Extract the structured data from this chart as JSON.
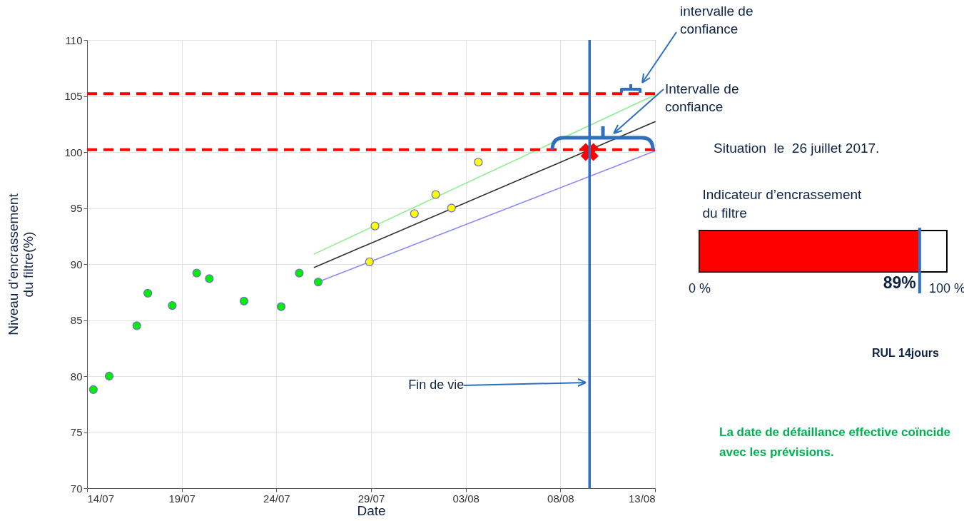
{
  "chart_data": [
    {
      "type": "scatter",
      "xlabel": "Date",
      "ylabel": "Niveau d’encrassement du filtre(%)",
      "xlim": [
        "2017-07-14",
        "2017-08-13"
      ],
      "xticks": [
        {
          "value": "2017-07-14",
          "label": "14/07"
        },
        {
          "value": "2017-07-19",
          "label": "19/07"
        },
        {
          "value": "2017-07-24",
          "label": "24/07"
        },
        {
          "value": "2017-07-29",
          "label": "29/07"
        },
        {
          "value": "2017-08-03",
          "label": "03/08"
        },
        {
          "value": "2017-08-08",
          "label": "08/08"
        },
        {
          "value": "2017-08-13",
          "label": "13/08"
        }
      ],
      "ylim": [
        70,
        110
      ],
      "yticks": [
        70,
        75,
        80,
        85,
        90,
        95,
        100,
        105,
        110
      ],
      "grid": true,
      "series": [
        {
          "type": "line",
          "color": "#90f090",
          "x": [
            "2017-07-26T00:00",
            "2017-08-13T00:00"
          ],
          "values": [
            90.9,
            105.1
          ]
        },
        {
          "type": "line",
          "color": "#303030",
          "x": [
            "2017-07-26T00:00",
            "2017-08-13T00:00"
          ],
          "values": [
            89.7,
            102.7
          ]
        },
        {
          "type": "line",
          "color": "#8c8cf5",
          "x": [
            "2017-07-26T05:00",
            "2017-08-13T00:00"
          ],
          "values": [
            88.4,
            100.1
          ]
        },
        {
          "type": "scatter",
          "color": "#00ee00",
          "marker": "circle",
          "x": [
            "2017-07-14T08:00",
            "2017-07-15T04:00",
            "2017-07-16T15:00",
            "2017-07-17T05:00",
            "2017-07-18T12:00",
            "2017-07-19T19:00",
            "2017-07-20T11:00",
            "2017-07-22T07:00",
            "2017-07-24T06:00",
            "2017-07-25T05:00",
            "2017-07-26T05:00"
          ],
          "values": [
            78.8,
            80.0,
            84.5,
            87.4,
            86.3,
            89.2,
            88.7,
            86.7,
            86.2,
            89.2,
            88.4
          ]
        },
        {
          "type": "scatter",
          "color": "#ffff00",
          "marker": "circle",
          "x": [
            "2017-07-28T22:00",
            "2017-07-29T05:00",
            "2017-07-31T07:00",
            "2017-08-01T10:00",
            "2017-08-02T06:00",
            "2017-08-03T16:00"
          ],
          "values": [
            90.2,
            93.4,
            94.5,
            96.2,
            95.0,
            99.1
          ]
        },
        {
          "type": "scatter",
          "color": "#ff0000",
          "marker": "cross",
          "x": [
            "2017-08-09T13:00"
          ],
          "values": [
            100
          ]
        }
      ],
      "ref_lines": [
        {
          "axis": "y",
          "value": 105.2,
          "color": "#ff0000",
          "line_style": "dashed"
        },
        {
          "axis": "y",
          "value": 100.2,
          "color": "#ff0000",
          "line_style": "dashed"
        },
        {
          "axis": "x",
          "value": "2017-08-09T13:00",
          "label": "Fin de vie",
          "color": "#2e6fbf"
        }
      ],
      "annotations": [
        "intervalle de confiance",
        "Intervalle de confiance"
      ]
    },
    {
      "type": "bar",
      "orientation": "horizontal",
      "title": "Indicateur d’encrassement du filtre",
      "categories": [
        null
      ],
      "values": [
        89
      ],
      "color": "#ff0000",
      "xlim": [
        0,
        100
      ],
      "xticks": [
        {
          "value": 0,
          "label": "0 %"
        },
        {
          "value": 100,
          "label": "100 %"
        }
      ],
      "value_labels": [
        "89%"
      ],
      "ref_lines": [
        {
          "axis": "x",
          "value": 89,
          "color": "#2e6fbf"
        }
      ],
      "annotations": [
        "Situation  le  26 juillet 2017.",
        "RUL 14jours",
        "La date de défaillance effective coïncide avec les prévisions."
      ]
    }
  ]
}
